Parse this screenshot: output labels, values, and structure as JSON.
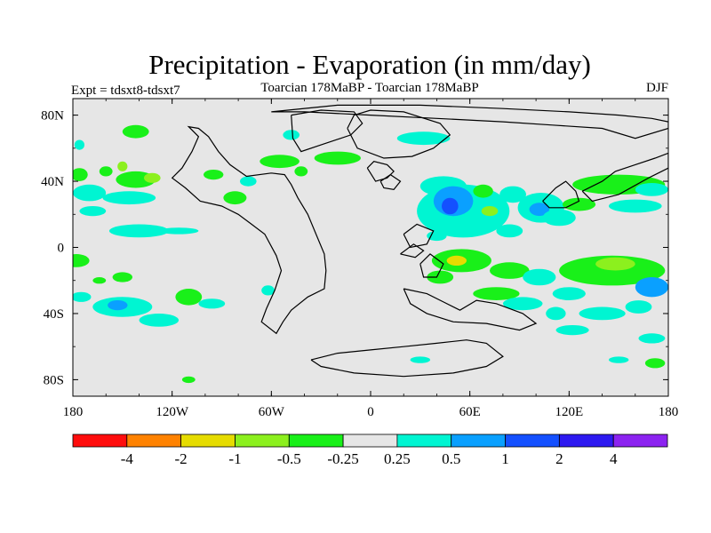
{
  "chart_data": {
    "type": "heatmap",
    "title": "Precipitation - Evaporation (in mm/day)",
    "left_subtitle": "Expt = tdsxt8-tdsxt7",
    "center_subtitle": "Toarcian 178MaBP - Toarcian 178MaBP",
    "right_subtitle": "DJF",
    "xlim": [
      -180,
      180
    ],
    "ylim": [
      -90,
      90
    ],
    "x_ticks": [
      {
        "value": -180,
        "label": "180"
      },
      {
        "value": -120,
        "label": "120W"
      },
      {
        "value": -60,
        "label": "60W"
      },
      {
        "value": 0,
        "label": "0"
      },
      {
        "value": 60,
        "label": "60E"
      },
      {
        "value": 120,
        "label": "120E"
      },
      {
        "value": 180,
        "label": "180"
      }
    ],
    "y_ticks": [
      {
        "value": 80,
        "label": "80N"
      },
      {
        "value": 40,
        "label": "40N"
      },
      {
        "value": 0,
        "label": "0"
      },
      {
        "value": -40,
        "label": "40S"
      },
      {
        "value": -80,
        "label": "80S"
      }
    ],
    "colorbar": {
      "levels": [
        "-4",
        "-2",
        "-1",
        "-0.5",
        "-0.25",
        "0.25",
        "0.5",
        "1",
        "2",
        "4"
      ],
      "colors": [
        "#ff0d0d",
        "#ff8200",
        "#e6dc00",
        "#8cf01e",
        "#19f019",
        "#e6e6e6",
        "#00f5d2",
        "#0aa0ff",
        "#1450ff",
        "#2d19f0",
        "#8c23f0"
      ]
    },
    "background_color": "#e6e6e6",
    "regions": [
      {
        "lon": -142,
        "lat": 70,
        "w": 8,
        "h": 4,
        "level": 4
      },
      {
        "lon": -176,
        "lat": 62,
        "w": 3,
        "h": 3,
        "level": 6
      },
      {
        "lon": -176,
        "lat": 44,
        "w": 5,
        "h": 4,
        "level": 4
      },
      {
        "lon": -160,
        "lat": 46,
        "w": 4,
        "h": 3,
        "level": 4
      },
      {
        "lon": -150,
        "lat": 49,
        "w": 3,
        "h": 3,
        "level": 3
      },
      {
        "lon": -142,
        "lat": 41,
        "w": 12,
        "h": 5,
        "level": 4
      },
      {
        "lon": -132,
        "lat": 42,
        "w": 5,
        "h": 3,
        "level": 3
      },
      {
        "lon": -170,
        "lat": 33,
        "w": 10,
        "h": 5,
        "level": 6
      },
      {
        "lon": -146,
        "lat": 30,
        "w": 16,
        "h": 4,
        "level": 6
      },
      {
        "lon": -168,
        "lat": 22,
        "w": 8,
        "h": 3,
        "level": 6
      },
      {
        "lon": -140,
        "lat": 10,
        "w": 18,
        "h": 4,
        "level": 6
      },
      {
        "lon": -116,
        "lat": 10,
        "w": 12,
        "h": 2,
        "level": 6
      },
      {
        "lon": -95,
        "lat": 44,
        "w": 6,
        "h": 3,
        "level": 4
      },
      {
        "lon": -82,
        "lat": 30,
        "w": 7,
        "h": 4,
        "level": 4
      },
      {
        "lon": -74,
        "lat": 40,
        "w": 5,
        "h": 3,
        "level": 6
      },
      {
        "lon": -55,
        "lat": 52,
        "w": 12,
        "h": 4,
        "level": 4
      },
      {
        "lon": -42,
        "lat": 46,
        "w": 4,
        "h": 3,
        "level": 4
      },
      {
        "lon": -48,
        "lat": 68,
        "w": 5,
        "h": 3,
        "level": 6
      },
      {
        "lon": -178,
        "lat": -8,
        "w": 8,
        "h": 4,
        "level": 4
      },
      {
        "lon": -164,
        "lat": -20,
        "w": 4,
        "h": 2,
        "level": 4
      },
      {
        "lon": -150,
        "lat": -18,
        "w": 6,
        "h": 3,
        "level": 4
      },
      {
        "lon": -175,
        "lat": -30,
        "w": 6,
        "h": 3,
        "level": 6
      },
      {
        "lon": -150,
        "lat": -36,
        "w": 18,
        "h": 6,
        "level": 6
      },
      {
        "lon": -153,
        "lat": -35,
        "w": 6,
        "h": 3,
        "level": 7
      },
      {
        "lon": -110,
        "lat": -30,
        "w": 8,
        "h": 5,
        "level": 4
      },
      {
        "lon": -128,
        "lat": -44,
        "w": 12,
        "h": 4,
        "level": 6
      },
      {
        "lon": -96,
        "lat": -34,
        "w": 8,
        "h": 3,
        "level": 6
      },
      {
        "lon": -110,
        "lat": -80,
        "w": 4,
        "h": 2,
        "level": 4
      },
      {
        "lon": -62,
        "lat": -26,
        "w": 4,
        "h": 3,
        "level": 6
      },
      {
        "lon": 32,
        "lat": 66,
        "w": 16,
        "h": 4,
        "level": 6
      },
      {
        "lon": -20,
        "lat": 54,
        "w": 14,
        "h": 4,
        "level": 4
      },
      {
        "lon": 44,
        "lat": 37,
        "w": 14,
        "h": 6,
        "level": 6
      },
      {
        "lon": 56,
        "lat": 22,
        "w": 28,
        "h": 16,
        "level": 6
      },
      {
        "lon": 50,
        "lat": 28,
        "w": 12,
        "h": 9,
        "level": 7
      },
      {
        "lon": 48,
        "lat": 25,
        "w": 5,
        "h": 5,
        "level": 8
      },
      {
        "lon": 68,
        "lat": 34,
        "w": 6,
        "h": 4,
        "level": 4
      },
      {
        "lon": 72,
        "lat": 22,
        "w": 5,
        "h": 3,
        "level": 3
      },
      {
        "lon": 86,
        "lat": 32,
        "w": 8,
        "h": 5,
        "level": 6
      },
      {
        "lon": 103,
        "lat": 24,
        "w": 14,
        "h": 9,
        "level": 6
      },
      {
        "lon": 102,
        "lat": 23,
        "w": 6,
        "h": 4,
        "level": 7
      },
      {
        "lon": 114,
        "lat": 18,
        "w": 10,
        "h": 5,
        "level": 6
      },
      {
        "lon": 84,
        "lat": 10,
        "w": 8,
        "h": 4,
        "level": 6
      },
      {
        "lon": 126,
        "lat": 26,
        "w": 10,
        "h": 4,
        "level": 4
      },
      {
        "lon": 150,
        "lat": 38,
        "w": 28,
        "h": 6,
        "level": 4
      },
      {
        "lon": 160,
        "lat": 25,
        "w": 16,
        "h": 4,
        "level": 6
      },
      {
        "lon": 170,
        "lat": 35,
        "w": 10,
        "h": 4,
        "level": 6
      },
      {
        "lon": 40,
        "lat": 7,
        "w": 6,
        "h": 3,
        "level": 6
      },
      {
        "lon": 55,
        "lat": -8,
        "w": 18,
        "h": 7,
        "level": 4
      },
      {
        "lon": 52,
        "lat": -8,
        "w": 6,
        "h": 3,
        "level": 2
      },
      {
        "lon": 42,
        "lat": -18,
        "w": 8,
        "h": 4,
        "level": 4
      },
      {
        "lon": 84,
        "lat": -14,
        "w": 12,
        "h": 5,
        "level": 4
      },
      {
        "lon": 102,
        "lat": -18,
        "w": 10,
        "h": 5,
        "level": 6
      },
      {
        "lon": 146,
        "lat": -14,
        "w": 32,
        "h": 9,
        "level": 4
      },
      {
        "lon": 148,
        "lat": -10,
        "w": 12,
        "h": 4,
        "level": 3
      },
      {
        "lon": 170,
        "lat": -24,
        "w": 10,
        "h": 6,
        "level": 7
      },
      {
        "lon": 120,
        "lat": -28,
        "w": 10,
        "h": 4,
        "level": 6
      },
      {
        "lon": 76,
        "lat": -28,
        "w": 14,
        "h": 4,
        "level": 4
      },
      {
        "lon": 92,
        "lat": -34,
        "w": 12,
        "h": 4,
        "level": 6
      },
      {
        "lon": 112,
        "lat": -40,
        "w": 6,
        "h": 4,
        "level": 6
      },
      {
        "lon": 140,
        "lat": -40,
        "w": 14,
        "h": 4,
        "level": 6
      },
      {
        "lon": 162,
        "lat": -36,
        "w": 8,
        "h": 4,
        "level": 6
      },
      {
        "lon": 122,
        "lat": -50,
        "w": 10,
        "h": 3,
        "level": 6
      },
      {
        "lon": 170,
        "lat": -55,
        "w": 8,
        "h": 3,
        "level": 6
      },
      {
        "lon": 150,
        "lat": -68,
        "w": 6,
        "h": 2,
        "level": 6
      },
      {
        "lon": 172,
        "lat": -70,
        "w": 6,
        "h": 3,
        "level": 4
      },
      {
        "lon": 30,
        "lat": -68,
        "w": 6,
        "h": 2,
        "level": 6
      }
    ],
    "continent_outlines": [
      [
        [
          -60,
          45
        ],
        [
          -75,
          43
        ],
        [
          -85,
          50
        ],
        [
          -92,
          58
        ],
        [
          -98,
          67
        ],
        [
          -104,
          72
        ],
        [
          -110,
          73
        ],
        [
          -104,
          67
        ],
        [
          -108,
          58
        ],
        [
          -114,
          48
        ],
        [
          -120,
          42
        ],
        [
          -112,
          36
        ],
        [
          -103,
          28
        ],
        [
          -90,
          25
        ],
        [
          -80,
          20
        ],
        [
          -72,
          14
        ],
        [
          -64,
          8
        ],
        [
          -57,
          -5
        ],
        [
          -54,
          -14
        ],
        [
          -58,
          -26
        ],
        [
          -63,
          -37
        ],
        [
          -66,
          -45
        ],
        [
          -57,
          -52
        ],
        [
          -53,
          -45
        ],
        [
          -48,
          -38
        ],
        [
          -38,
          -30
        ],
        [
          -28,
          -25
        ],
        [
          -27,
          -14
        ],
        [
          -28,
          -4
        ],
        [
          -33,
          8
        ],
        [
          -38,
          20
        ],
        [
          -44,
          30
        ],
        [
          -48,
          38
        ],
        [
          -52,
          44
        ],
        [
          -60,
          45
        ]
      ],
      [
        [
          -48,
          80
        ],
        [
          -30,
          83
        ],
        [
          -10,
          82
        ],
        [
          -5,
          75
        ],
        [
          -12,
          68
        ],
        [
          -30,
          62
        ],
        [
          -42,
          58
        ],
        [
          -47,
          66
        ],
        [
          -48,
          80
        ]
      ],
      [
        [
          -14,
          72
        ],
        [
          -10,
          80
        ],
        [
          0,
          83
        ],
        [
          20,
          82
        ],
        [
          42,
          75
        ],
        [
          48,
          68
        ],
        [
          38,
          60
        ],
        [
          25,
          55
        ],
        [
          8,
          54
        ],
        [
          -8,
          60
        ],
        [
          -14,
          72
        ]
      ],
      [
        [
          -2,
          48
        ],
        [
          2,
          52
        ],
        [
          10,
          50
        ],
        [
          14,
          46
        ],
        [
          10,
          42
        ],
        [
          3,
          40
        ],
        [
          -2,
          48
        ]
      ],
      [
        [
          6,
          40
        ],
        [
          12,
          44
        ],
        [
          18,
          40
        ],
        [
          14,
          35
        ],
        [
          8,
          36
        ],
        [
          6,
          40
        ]
      ],
      [
        [
          20,
          8
        ],
        [
          28,
          14
        ],
        [
          38,
          10
        ],
        [
          34,
          2
        ],
        [
          24,
          0
        ],
        [
          20,
          8
        ]
      ],
      [
        [
          18,
          -4
        ],
        [
          26,
          2
        ],
        [
          32,
          -2
        ],
        [
          27,
          -6
        ],
        [
          18,
          -4
        ]
      ],
      [
        [
          30,
          -10
        ],
        [
          36,
          -4
        ],
        [
          44,
          -10
        ],
        [
          40,
          -18
        ],
        [
          32,
          -18
        ],
        [
          30,
          -10
        ]
      ],
      [
        [
          20,
          -25
        ],
        [
          34,
          -28
        ],
        [
          44,
          -33
        ],
        [
          54,
          -38
        ],
        [
          64,
          -32
        ],
        [
          76,
          -34
        ],
        [
          92,
          -40
        ],
        [
          100,
          -46
        ],
        [
          90,
          -50
        ],
        [
          70,
          -46
        ],
        [
          50,
          -45
        ],
        [
          34,
          -40
        ],
        [
          24,
          -34
        ],
        [
          20,
          -25
        ]
      ],
      [
        [
          -36,
          -68
        ],
        [
          -20,
          -64
        ],
        [
          0,
          -62
        ],
        [
          20,
          -60
        ],
        [
          40,
          -58
        ],
        [
          58,
          -56
        ],
        [
          70,
          -58
        ],
        [
          80,
          -66
        ],
        [
          70,
          -72
        ],
        [
          50,
          -76
        ],
        [
          20,
          -78
        ],
        [
          -10,
          -76
        ],
        [
          -30,
          -72
        ],
        [
          -36,
          -68
        ]
      ],
      [
        [
          104,
          28
        ],
        [
          112,
          36
        ],
        [
          118,
          40
        ],
        [
          124,
          34
        ],
        [
          126,
          28
        ],
        [
          118,
          24
        ],
        [
          108,
          24
        ],
        [
          104,
          28
        ]
      ],
      [
        [
          128,
          34
        ],
        [
          140,
          40
        ],
        [
          148,
          46
        ],
        [
          160,
          50
        ],
        [
          172,
          54
        ],
        [
          180,
          57
        ],
        [
          180,
          48
        ],
        [
          168,
          42
        ],
        [
          150,
          32
        ],
        [
          134,
          28
        ],
        [
          128,
          34
        ]
      ],
      [
        [
          -60,
          82
        ],
        [
          -20,
          86
        ],
        [
          30,
          86
        ],
        [
          80,
          84
        ],
        [
          120,
          82
        ],
        [
          150,
          80
        ],
        [
          170,
          78
        ],
        [
          180,
          76
        ],
        [
          180,
          72
        ],
        [
          160,
          66
        ],
        [
          140,
          72
        ],
        [
          110,
          74
        ],
        [
          80,
          76
        ],
        [
          40,
          78
        ],
        [
          0,
          80
        ],
        [
          -40,
          82
        ],
        [
          -60,
          82
        ]
      ]
    ]
  }
}
